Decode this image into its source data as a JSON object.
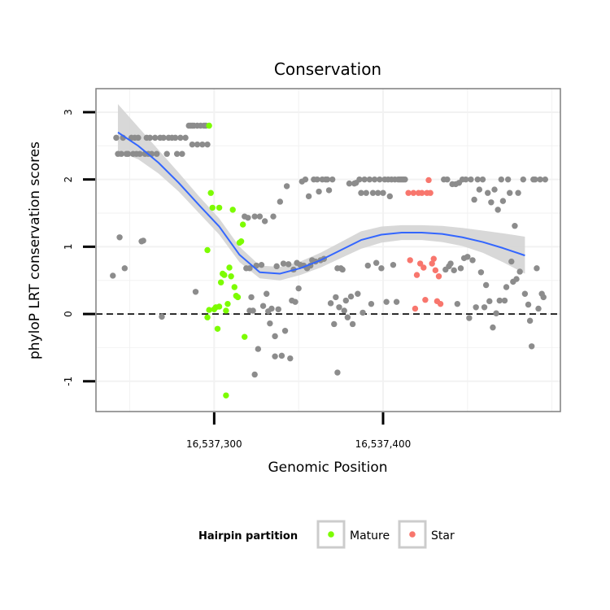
{
  "chart_data": {
    "type": "scatter",
    "title": "Conservation",
    "xlabel": "Genomic Position",
    "ylabel": "phyloP LRT conservation scores",
    "xlim": [
      16537230,
      16537505
    ],
    "ylim": [
      -1.45,
      3.35
    ],
    "x_ticks": [
      {
        "value": 16537300,
        "label": "16,537,300"
      },
      {
        "value": 16537400,
        "label": "16,537,400"
      }
    ],
    "y_ticks": [
      {
        "value": -1,
        "label": "-1"
      },
      {
        "value": 0,
        "label": "0"
      },
      {
        "value": 1,
        "label": "1"
      },
      {
        "value": 2,
        "label": "2"
      },
      {
        "value": 3,
        "label": "3"
      }
    ],
    "reference_line": {
      "y": 0,
      "style": "dashed"
    },
    "legend": {
      "title": "Hairpin partition",
      "position": "bottom",
      "entries": [
        {
          "label": "Mature",
          "color": "#7CFC00"
        },
        {
          "label": "Star",
          "color": "#F8766D"
        }
      ]
    },
    "colors": {
      "other": "#8c8c8c",
      "Mature": "#7CFC00",
      "Star": "#F8766D",
      "smooth": "#3366FF",
      "band": "#d4d4d4",
      "panel_border": "#7f7f7f",
      "grid": "#f2f2f2"
    },
    "smooth": {
      "x": [
        16537243,
        16537255,
        16537267,
        16537279,
        16537291,
        16537303,
        16537315,
        16537327,
        16537339,
        16537351,
        16537363,
        16537375,
        16537387,
        16537399,
        16537411,
        16537423,
        16537435,
        16537447,
        16537459,
        16537471,
        16537484
      ],
      "y": [
        2.7,
        2.5,
        2.25,
        1.95,
        1.62,
        1.3,
        0.88,
        0.62,
        0.6,
        0.68,
        0.8,
        0.95,
        1.1,
        1.18,
        1.21,
        1.21,
        1.19,
        1.14,
        1.07,
        0.98,
        0.87
      ],
      "lower": [
        2.42,
        2.3,
        2.09,
        1.82,
        1.5,
        1.18,
        0.77,
        0.53,
        0.5,
        0.58,
        0.69,
        0.83,
        0.97,
        1.06,
        1.1,
        1.1,
        1.07,
        1.01,
        0.91,
        0.77,
        0.6
      ],
      "upper": [
        3.12,
        2.78,
        2.44,
        2.1,
        1.75,
        1.42,
        1.0,
        0.72,
        0.7,
        0.78,
        0.91,
        1.07,
        1.23,
        1.3,
        1.32,
        1.32,
        1.31,
        1.28,
        1.24,
        1.2,
        1.15
      ]
    },
    "series": [
      {
        "name": "Mature",
        "points": [
          [
            16537297,
            2.8
          ],
          [
            16537296,
            0.95
          ],
          [
            16537296,
            -0.05
          ],
          [
            16537297,
            0.06
          ],
          [
            16537298,
            1.8
          ],
          [
            16537299,
            1.58
          ],
          [
            16537300,
            0.07
          ],
          [
            16537301,
            0.1
          ],
          [
            16537302,
            -0.22
          ],
          [
            16537303,
            1.58
          ],
          [
            16537303,
            0.11
          ],
          [
            16537304,
            0.47
          ],
          [
            16537305,
            0.6
          ],
          [
            16537306,
            0.58
          ],
          [
            16537307,
            0.05
          ],
          [
            16537307,
            -1.21
          ],
          [
            16537308,
            0.15
          ],
          [
            16537309,
            0.69
          ],
          [
            16537310,
            0.56
          ],
          [
            16537311,
            1.55
          ],
          [
            16537312,
            0.4
          ],
          [
            16537313,
            0.27
          ],
          [
            16537314,
            0.25
          ],
          [
            16537315,
            1.06
          ],
          [
            16537316,
            1.08
          ],
          [
            16537317,
            1.33
          ],
          [
            16537318,
            -0.34
          ]
        ]
      },
      {
        "name": "Star",
        "points": [
          [
            16537415,
            1.8
          ],
          [
            16537416,
            0.8
          ],
          [
            16537418,
            1.8
          ],
          [
            16537419,
            0.08
          ],
          [
            16537420,
            0.58
          ],
          [
            16537421,
            1.8
          ],
          [
            16537422,
            0.75
          ],
          [
            16537423,
            1.8
          ],
          [
            16537424,
            0.69
          ],
          [
            16537425,
            0.21
          ],
          [
            16537426,
            1.8
          ],
          [
            16537427,
            1.99
          ],
          [
            16537428,
            1.8
          ],
          [
            16537429,
            0.75
          ],
          [
            16537430,
            0.82
          ],
          [
            16537431,
            0.65
          ],
          [
            16537432,
            0.19
          ],
          [
            16537433,
            0.56
          ],
          [
            16537434,
            0.15
          ]
        ]
      },
      {
        "name": "",
        "points": [
          [
            16537240,
            0.57
          ],
          [
            16537242,
            2.62
          ],
          [
            16537243,
            2.38
          ],
          [
            16537244,
            1.14
          ],
          [
            16537245,
            2.38
          ],
          [
            16537246,
            2.62
          ],
          [
            16537247,
            0.68
          ],
          [
            16537248,
            2.38
          ],
          [
            16537249,
            2.38
          ],
          [
            16537251,
            2.62
          ],
          [
            16537252,
            2.38
          ],
          [
            16537253,
            2.62
          ],
          [
            16537254,
            2.38
          ],
          [
            16537255,
            2.62
          ],
          [
            16537256,
            2.38
          ],
          [
            16537257,
            1.08
          ],
          [
            16537258,
            1.09
          ],
          [
            16537259,
            2.38
          ],
          [
            16537260,
            2.62
          ],
          [
            16537261,
            2.38
          ],
          [
            16537262,
            2.62
          ],
          [
            16537263,
            2.38
          ],
          [
            16537265,
            2.62
          ],
          [
            16537266,
            2.38
          ],
          [
            16537268,
            2.62
          ],
          [
            16537269,
            -0.04
          ],
          [
            16537270,
            2.62
          ],
          [
            16537272,
            2.38
          ],
          [
            16537273,
            2.62
          ],
          [
            16537275,
            2.62
          ],
          [
            16537277,
            2.62
          ],
          [
            16537278,
            2.38
          ],
          [
            16537280,
            2.62
          ],
          [
            16537281,
            2.38
          ],
          [
            16537283,
            2.62
          ],
          [
            16537285,
            2.8
          ],
          [
            16537286,
            2.8
          ],
          [
            16537287,
            2.8
          ],
          [
            16537287,
            2.52
          ],
          [
            16537288,
            2.8
          ],
          [
            16537289,
            0.33
          ],
          [
            16537290,
            2.8
          ],
          [
            16537290,
            2.52
          ],
          [
            16537292,
            2.8
          ],
          [
            16537293,
            2.52
          ],
          [
            16537294,
            2.8
          ],
          [
            16537295,
            2.8
          ],
          [
            16537296,
            2.52
          ],
          [
            16537318,
            1.45
          ],
          [
            16537319,
            0.68
          ],
          [
            16537320,
            1.43
          ],
          [
            16537321,
            0.68
          ],
          [
            16537321,
            0.05
          ],
          [
            16537322,
            0.25
          ],
          [
            16537323,
            0.05
          ],
          [
            16537324,
            1.45
          ],
          [
            16537324,
            -0.9
          ],
          [
            16537325,
            0.72
          ],
          [
            16537326,
            -0.52
          ],
          [
            16537327,
            1.45
          ],
          [
            16537328,
            0.73
          ],
          [
            16537329,
            0.12
          ],
          [
            16537330,
            1.38
          ],
          [
            16537331,
            0.3
          ],
          [
            16537332,
            0.04
          ],
          [
            16537333,
            -0.14
          ],
          [
            16537334,
            0.08
          ],
          [
            16537335,
            1.45
          ],
          [
            16537336,
            -0.33
          ],
          [
            16537336,
            -0.63
          ],
          [
            16537337,
            0.71
          ],
          [
            16537338,
            0.07
          ],
          [
            16537339,
            1.67
          ],
          [
            16537340,
            -0.62
          ],
          [
            16537341,
            0.75
          ],
          [
            16537342,
            -0.25
          ],
          [
            16537343,
            1.9
          ],
          [
            16537344,
            0.74
          ],
          [
            16537345,
            -0.66
          ],
          [
            16537346,
            0.2
          ],
          [
            16537347,
            0.66
          ],
          [
            16537348,
            0.18
          ],
          [
            16537349,
            0.76
          ],
          [
            16537350,
            0.38
          ],
          [
            16537351,
            0.73
          ],
          [
            16537352,
            1.97
          ],
          [
            16537353,
            0.72
          ],
          [
            16537354,
            2.0
          ],
          [
            16537355,
            0.68
          ],
          [
            16537356,
            1.75
          ],
          [
            16537357,
            0.72
          ],
          [
            16537358,
            0.8
          ],
          [
            16537359,
            2.0
          ],
          [
            16537360,
            0.78
          ],
          [
            16537361,
            2.0
          ],
          [
            16537362,
            1.82
          ],
          [
            16537363,
            0.8
          ],
          [
            16537364,
            2.0
          ],
          [
            16537365,
            0.82
          ],
          [
            16537366,
            2.0
          ],
          [
            16537367,
            2.0
          ],
          [
            16537368,
            1.84
          ],
          [
            16537369,
            0.16
          ],
          [
            16537370,
            2.0
          ],
          [
            16537371,
            -0.15
          ],
          [
            16537372,
            0.25
          ],
          [
            16537373,
            -0.87
          ],
          [
            16537373,
            0.68
          ],
          [
            16537374,
            0.1
          ],
          [
            16537375,
            0.68
          ],
          [
            16537376,
            0.66
          ],
          [
            16537377,
            0.05
          ],
          [
            16537378,
            0.2
          ],
          [
            16537379,
            -0.05
          ],
          [
            16537380,
            1.94
          ],
          [
            16537381,
            0.26
          ],
          [
            16537382,
            -0.15
          ],
          [
            16537383,
            1.94
          ],
          [
            16537384,
            1.95
          ],
          [
            16537385,
            0.3
          ],
          [
            16537386,
            2.0
          ],
          [
            16537387,
            1.8
          ],
          [
            16537388,
            0.02
          ],
          [
            16537389,
            2.0
          ],
          [
            16537390,
            1.8
          ],
          [
            16537391,
            0.72
          ],
          [
            16537392,
            2.0
          ],
          [
            16537393,
            0.15
          ],
          [
            16537394,
            1.8
          ],
          [
            16537395,
            2.0
          ],
          [
            16537396,
            0.76
          ],
          [
            16537397,
            1.8
          ],
          [
            16537398,
            2.0
          ],
          [
            16537399,
            0.68
          ],
          [
            16537400,
            1.8
          ],
          [
            16537401,
            2.0
          ],
          [
            16537402,
            0.18
          ],
          [
            16537403,
            2.0
          ],
          [
            16537404,
            1.75
          ],
          [
            16537405,
            2.0
          ],
          [
            16537406,
            0.73
          ],
          [
            16537407,
            2.0
          ],
          [
            16537408,
            0.18
          ],
          [
            16537409,
            2.0
          ],
          [
            16537410,
            2.0
          ],
          [
            16537411,
            2.0
          ],
          [
            16537412,
            2.0
          ],
          [
            16537413,
            2.0
          ],
          [
            16537436,
            2.0
          ],
          [
            16537437,
            0.66
          ],
          [
            16537438,
            2.0
          ],
          [
            16537439,
            0.71
          ],
          [
            16537440,
            0.75
          ],
          [
            16537441,
            1.93
          ],
          [
            16537442,
            0.65
          ],
          [
            16537443,
            1.93
          ],
          [
            16537444,
            0.15
          ],
          [
            16537445,
            1.95
          ],
          [
            16537446,
            0.68
          ],
          [
            16537447,
            2.0
          ],
          [
            16537448,
            0.83
          ],
          [
            16537449,
            2.0
          ],
          [
            16537450,
            0.85
          ],
          [
            16537451,
            -0.06
          ],
          [
            16537452,
            2.0
          ],
          [
            16537453,
            0.8
          ],
          [
            16537454,
            1.7
          ],
          [
            16537455,
            0.1
          ],
          [
            16537456,
            2.0
          ],
          [
            16537457,
            1.85
          ],
          [
            16537458,
            0.62
          ],
          [
            16537459,
            2.0
          ],
          [
            16537460,
            0.1
          ],
          [
            16537461,
            0.43
          ],
          [
            16537462,
            1.8
          ],
          [
            16537463,
            0.19
          ],
          [
            16537464,
            1.66
          ],
          [
            16537465,
            -0.2
          ],
          [
            16537466,
            1.85
          ],
          [
            16537467,
            0.01
          ],
          [
            16537468,
            1.55
          ],
          [
            16537469,
            0.2
          ],
          [
            16537470,
            2.0
          ],
          [
            16537471,
            1.68
          ],
          [
            16537472,
            0.2
          ],
          [
            16537473,
            0.4
          ],
          [
            16537474,
            2.0
          ],
          [
            16537475,
            1.8
          ],
          [
            16537476,
            0.78
          ],
          [
            16537477,
            0.48
          ],
          [
            16537478,
            1.31
          ],
          [
            16537479,
            0.52
          ],
          [
            16537480,
            1.8
          ],
          [
            16537481,
            0.63
          ],
          [
            16537483,
            2.0
          ],
          [
            16537484,
            0.3
          ],
          [
            16537486,
            0.14
          ],
          [
            16537487,
            -0.1
          ],
          [
            16537488,
            -0.48
          ],
          [
            16537489,
            2.0
          ],
          [
            16537490,
            2.0
          ],
          [
            16537491,
            0.68
          ],
          [
            16537492,
            0.08
          ],
          [
            16537493,
            2.0
          ],
          [
            16537494,
            0.3
          ],
          [
            16537495,
            0.25
          ],
          [
            16537496,
            2.0
          ]
        ]
      }
    ]
  }
}
